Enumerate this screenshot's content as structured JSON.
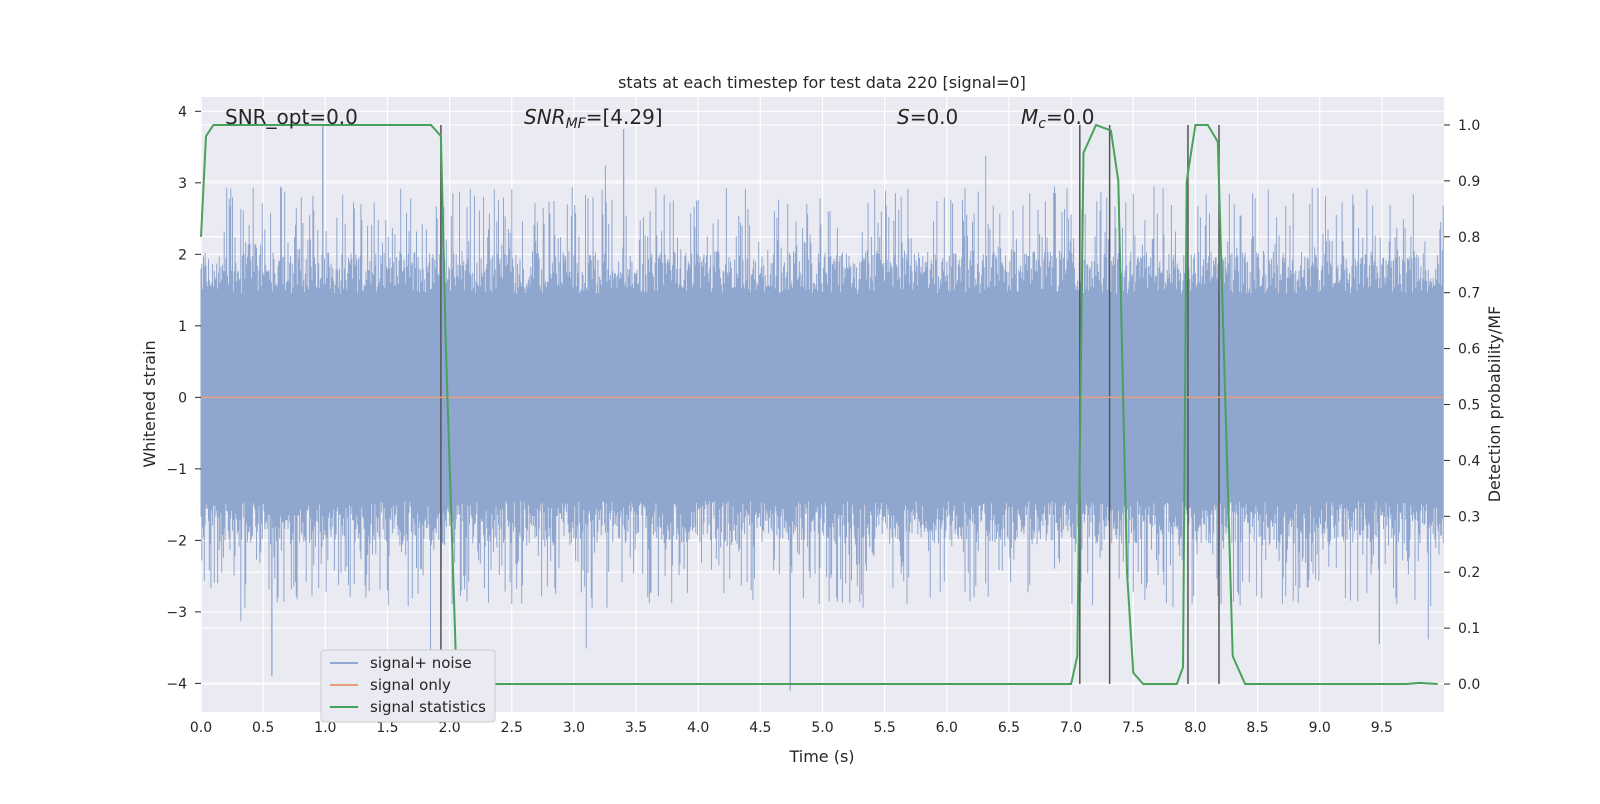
{
  "chart_data": {
    "type": "line",
    "title": "stats at each timestep for test data 220 [signal=0]",
    "xlabel": "Time (s)",
    "ylabel_left": "Whitened strain",
    "ylabel_right": "Detection probability/MF",
    "xlim": [
      0.0,
      10.0
    ],
    "ylim_left": [
      -4.4,
      4.2
    ],
    "ylim_right": [
      -0.05,
      1.05
    ],
    "x_ticks": [
      "0.0",
      "0.5",
      "1.0",
      "1.5",
      "2.0",
      "2.5",
      "3.0",
      "3.5",
      "4.0",
      "4.5",
      "5.0",
      "5.5",
      "6.0",
      "6.5",
      "7.0",
      "7.5",
      "8.0",
      "8.5",
      "9.0",
      "9.5"
    ],
    "y_left_ticks": [
      "−4",
      "−3",
      "−2",
      "−1",
      "0",
      "1",
      "2",
      "3",
      "4"
    ],
    "y_right_ticks": [
      "0.0",
      "0.1",
      "0.2",
      "0.3",
      "0.4",
      "0.5",
      "0.6",
      "0.7",
      "0.8",
      "0.9",
      "1.0"
    ],
    "grid": true,
    "annotations": {
      "snr_opt": "SNR_opt=0.0",
      "snr_mf_label": "SNR",
      "snr_mf_sub": "MF",
      "snr_mf_value": "=[4.29]",
      "s_label": "S",
      "s_value": "=0.0",
      "mc_label": "M",
      "mc_sub": "c",
      "mc_value": "=0.0"
    },
    "series": [
      {
        "name": "signal+ noise",
        "color": "#8fa6cf",
        "description_kind": "noise",
        "typical_amplitude": 1.45,
        "extreme_peaks": [
          {
            "x": 0.98,
            "y": 3.8
          },
          {
            "x": 3.4,
            "y": 3.75
          },
          {
            "x": 0.57,
            "y": -3.9
          },
          {
            "x": 4.74,
            "y": -4.1
          },
          {
            "x": 9.48,
            "y": -3.45
          },
          {
            "x": 1.93,
            "y": 2.65
          }
        ]
      },
      {
        "name": "signal only",
        "color": "#e8a07e",
        "values_constant": 0.0
      },
      {
        "name": "signal statistics",
        "color": "#4aa15c",
        "axis": "right",
        "points": [
          [
            0.0,
            0.8
          ],
          [
            0.04,
            0.98
          ],
          [
            0.1,
            1.0
          ],
          [
            1.85,
            1.0
          ],
          [
            1.93,
            0.98
          ],
          [
            1.97,
            0.6
          ],
          [
            2.05,
            0.05
          ],
          [
            2.15,
            0.0
          ],
          [
            7.0,
            0.0
          ],
          [
            7.05,
            0.05
          ],
          [
            7.1,
            0.95
          ],
          [
            7.2,
            1.0
          ],
          [
            7.32,
            0.99
          ],
          [
            7.38,
            0.9
          ],
          [
            7.45,
            0.2
          ],
          [
            7.5,
            0.02
          ],
          [
            7.58,
            0.0
          ],
          [
            7.85,
            0.0
          ],
          [
            7.9,
            0.03
          ],
          [
            7.93,
            0.9
          ],
          [
            8.0,
            1.0
          ],
          [
            8.1,
            1.0
          ],
          [
            8.18,
            0.97
          ],
          [
            8.3,
            0.05
          ],
          [
            8.4,
            0.0
          ],
          [
            9.7,
            0.0
          ],
          [
            9.8,
            0.002
          ],
          [
            9.95,
            0.0
          ]
        ]
      }
    ],
    "vertical_markers": [
      1.93,
      7.07,
      7.31,
      7.94,
      8.19
    ]
  }
}
